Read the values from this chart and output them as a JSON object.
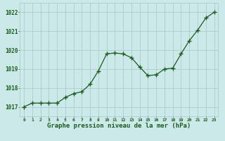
{
  "x": [
    0,
    1,
    2,
    3,
    4,
    5,
    6,
    7,
    8,
    9,
    10,
    11,
    12,
    13,
    14,
    15,
    16,
    17,
    18,
    19,
    20,
    21,
    22,
    23
  ],
  "y": [
    1017.0,
    1017.2,
    1017.2,
    1017.2,
    1017.2,
    1017.5,
    1017.7,
    1017.8,
    1018.2,
    1018.9,
    1019.8,
    1019.85,
    1019.8,
    1019.6,
    1019.1,
    1018.65,
    1018.7,
    1019.0,
    1019.05,
    1019.8,
    1020.5,
    1021.05,
    1021.7,
    1022.0
  ],
  "line_color": "#1a5c1a",
  "marker_color": "#1a5c1a",
  "bg_color": "#cce9e9",
  "grid_color": "#aacccc",
  "axis_label_color": "#1a5c1a",
  "tick_label_color": "#1a5c1a",
  "xlabel": "Graphe pression niveau de la mer (hPa)",
  "ylim": [
    1016.5,
    1022.5
  ],
  "yticks": [
    1017,
    1018,
    1019,
    1020,
    1021,
    1022
  ],
  "xlim": [
    -0.5,
    23.5
  ],
  "xticks": [
    0,
    1,
    2,
    3,
    4,
    5,
    6,
    7,
    8,
    9,
    10,
    11,
    12,
    13,
    14,
    15,
    16,
    17,
    18,
    19,
    20,
    21,
    22,
    23
  ]
}
